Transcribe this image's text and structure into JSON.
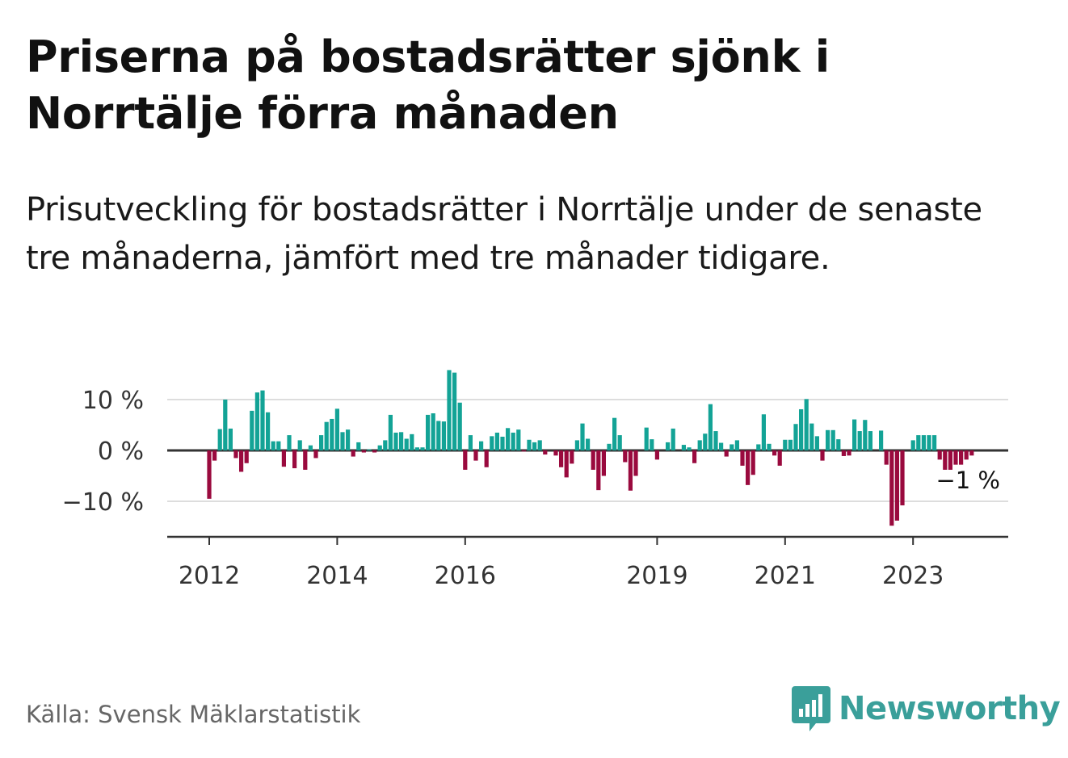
{
  "header": {
    "title": "Priserna på bostadsrätter sjönk i Norrtälje förra månaden",
    "subtitle": "Prisutveckling för bostadsrätter i Norrtälje under de senaste tre månaderna, jämfört med tre månader tidigare."
  },
  "footer": {
    "source": "Källa: Svensk Mäklarstatistik",
    "brand": "Newsworthy"
  },
  "colors": {
    "positive": "#13a396",
    "negative": "#9a0a3e",
    "gridline": "#dddddd",
    "axis": "#333333",
    "brand": "#3a9f9a"
  },
  "chart_data": {
    "type": "bar",
    "title": "Priserna på bostadsrätter sjönk i Norrtälje förra månaden",
    "ylabel": "",
    "xlabel": "",
    "ylim": [
      -17,
      17
    ],
    "yticks": [
      {
        "value": 10,
        "label": "10 %"
      },
      {
        "value": 0,
        "label": "0 %"
      },
      {
        "value": -10,
        "label": "−10 %"
      }
    ],
    "xticks": [
      {
        "year": 2012,
        "label": "2012"
      },
      {
        "year": 2014,
        "label": "2014"
      },
      {
        "year": 2016,
        "label": "2016"
      },
      {
        "year": 2019,
        "label": "2019"
      },
      {
        "year": 2021,
        "label": "2021"
      },
      {
        "year": 2023,
        "label": "2023"
      }
    ],
    "start": "2012-01",
    "end_label": "−1 %",
    "series": [
      {
        "name": "Prisutveckling",
        "unit": "%",
        "values": [
          -9.5,
          -2,
          4.2,
          10,
          4.3,
          -1.5,
          -4.2,
          -2.5,
          7.8,
          11.4,
          11.8,
          7.5,
          1.8,
          1.8,
          -3.2,
          3,
          -3.5,
          2,
          -3.8,
          1,
          -1.5,
          3,
          5.6,
          6.2,
          8.2,
          3.6,
          4.1,
          -1.2,
          1.6,
          -0.4,
          0.2,
          -0.4,
          1,
          2,
          7,
          3.5,
          3.6,
          2.3,
          3.2,
          0.6,
          0.6,
          7,
          7.3,
          5.8,
          5.7,
          15.8,
          15.3,
          9.4,
          -3.8,
          3,
          -2,
          1.8,
          -3.3,
          2.8,
          3.5,
          2.7,
          4.4,
          3.5,
          4.1,
          -0.2,
          2.1,
          1.6,
          2,
          -0.8,
          0,
          -1,
          -3.3,
          -5.3,
          -2.6,
          2,
          5.3,
          2.3,
          -3.8,
          -7.8,
          -5,
          1.3,
          6.4,
          3,
          -2.3,
          -7.9,
          -5,
          0,
          4.5,
          2.2,
          -1.8,
          0,
          1.6,
          4.3,
          0,
          1.1,
          0.6,
          -2.5,
          2,
          3.3,
          9.1,
          3.8,
          1.5,
          -1.2,
          1.2,
          2,
          -3,
          -6.8,
          -4.8,
          1.2,
          7.1,
          1.3,
          -1,
          -3,
          2.1,
          2.1,
          5.2,
          8.1,
          10.1,
          5.3,
          2.8,
          -2,
          4,
          4,
          2.2,
          -1.1,
          -1,
          6.1,
          3.8,
          6,
          3.8,
          0,
          3.9,
          -2.8,
          -14.8,
          -13.8,
          -10.8,
          0,
          2,
          3,
          3,
          3,
          3,
          -1.8,
          -3.8,
          -3.8,
          -2.8,
          -2.8,
          -1.8,
          -1
        ]
      }
    ]
  }
}
